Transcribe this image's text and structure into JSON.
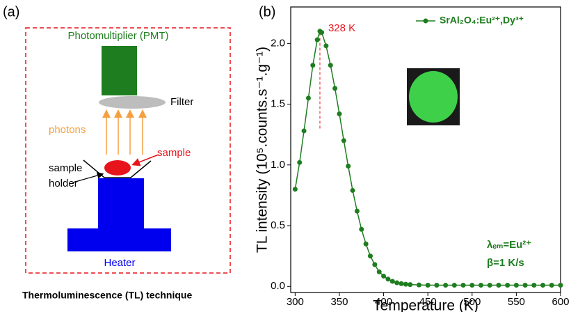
{
  "diagram": {
    "panel_label": "(a)",
    "detector": "Photomultiplier (PMT)",
    "filter": "Filter",
    "photons": "photons",
    "sample": "sample",
    "holder": [
      "sample",
      "holder"
    ],
    "heater": "Heater",
    "caption": "Thermoluminescence (TL) technique"
  },
  "chart_data": {
    "type": "line",
    "panel_label": "(b)",
    "x_label": "Temperature (K)",
    "y_label": "TL intensity (10⁵.counts.s⁻¹.g⁻¹)",
    "x": [
      300,
      305,
      310,
      315,
      320,
      325,
      328,
      330,
      335,
      340,
      345,
      350,
      355,
      360,
      365,
      370,
      375,
      380,
      385,
      390,
      395,
      400,
      405,
      410,
      415,
      420,
      425,
      430,
      440,
      450,
      460,
      470,
      480,
      490,
      500,
      510,
      520,
      530,
      540,
      550,
      560,
      570,
      580,
      590,
      600
    ],
    "series": [
      {
        "name": "SrAl₂O₄:Eu²⁺,Dy³⁺",
        "color": "#1e7d1e",
        "values": [
          0.8,
          1.02,
          1.28,
          1.55,
          1.82,
          2.03,
          2.1,
          2.09,
          1.98,
          1.82,
          1.63,
          1.42,
          1.2,
          0.99,
          0.79,
          0.62,
          0.47,
          0.35,
          0.25,
          0.18,
          0.12,
          0.085,
          0.06,
          0.042,
          0.03,
          0.023,
          0.018,
          0.015,
          0.012,
          0.01,
          0.01,
          0.01,
          0.01,
          0.01,
          0.01,
          0.01,
          0.01,
          0.01,
          0.01,
          0.01,
          0.01,
          0.01,
          0.01,
          0.01,
          0.01
        ]
      }
    ],
    "xlim": [
      295,
      600
    ],
    "ylim": [
      -0.05,
      2.3
    ],
    "xticks": [
      300,
      350,
      400,
      450,
      500,
      550,
      600
    ],
    "yticks": [
      {
        "value": 0,
        "label": "0.0"
      },
      0.5,
      {
        "value": 1,
        "label": "1.0"
      },
      1.5,
      {
        "value": 2,
        "label": "2.0"
      }
    ],
    "peak": {
      "label": "328 K",
      "x": 328,
      "y": [
        1.3,
        2.1
      ],
      "color": "#e8141c"
    },
    "annotations": [
      "λₑₘ=Eu²⁺",
      "β=1 K/s"
    ],
    "legend": "upper right"
  }
}
